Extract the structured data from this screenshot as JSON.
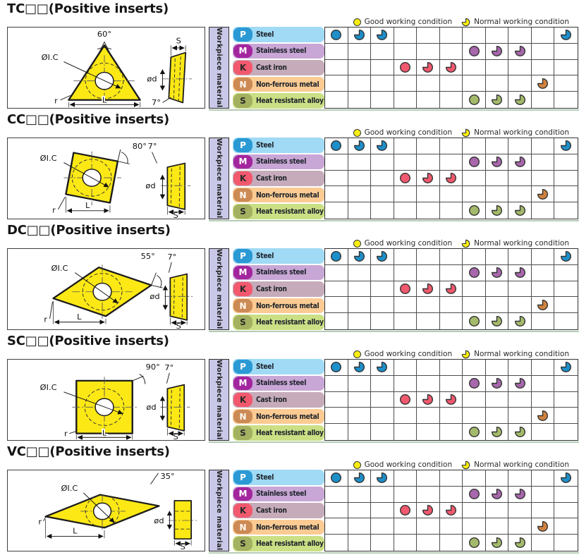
{
  "legend": {
    "good_label": "Good working condition",
    "normal_label": "Normal working condition"
  },
  "workpiece_label": "Workpiece material",
  "columns": 11,
  "materials": [
    {
      "code": "P",
      "name": "Steel",
      "badge_color": "#2b99d4",
      "badge_text_color": "#ffffff",
      "bar_color": "#a0daf5",
      "dot_color": "#1d8fc9",
      "cells": [
        "G",
        "N",
        "N",
        "",
        "",
        "",
        "",
        "",
        "",
        "",
        "N"
      ]
    },
    {
      "code": "M",
      "name": "Stainless steel",
      "badge_color": "#a3269f",
      "badge_text_color": "#ffffff",
      "bar_color": "#c8a6d5",
      "dot_color": "#a767ac",
      "cells": [
        "",
        "",
        "",
        "",
        "",
        "",
        "G",
        "N",
        "N",
        "",
        ""
      ]
    },
    {
      "code": "K",
      "name": "Cast iron",
      "badge_color": "#f2596e",
      "badge_text_color": "#2a2a2a",
      "bar_color": "#c6abba",
      "dot_color": "#f2596e",
      "cells": [
        "",
        "",
        "",
        "G",
        "N",
        "N",
        "",
        "",
        "",
        "",
        ""
      ]
    },
    {
      "code": "N",
      "name": "Non-ferrous metal",
      "badge_color": "#cc8a55",
      "badge_text_color": "#fff8ee",
      "bar_color": "#fbcb93",
      "dot_color": "#d0833f",
      "cells": [
        "",
        "",
        "",
        "",
        "",
        "",
        "",
        "",
        "",
        "N",
        ""
      ]
    },
    {
      "code": "S",
      "name": "Heat resistant alloy",
      "badge_color": "#a3b160",
      "badge_text_color": "#2a2a2a",
      "bar_color": "#cbdf85",
      "dot_color": "#a4ba6b",
      "cells": [
        "",
        "",
        "",
        "",
        "",
        "",
        "G",
        "N",
        "N",
        "",
        ""
      ]
    }
  ],
  "sections": [
    {
      "id": "TC",
      "title": "TC□□(Positive inserts)",
      "diagram": {
        "angle": "60°",
        "inscribed_circle": "ØI.C",
        "corner_radius": "r",
        "length": "L",
        "thickness": "S",
        "hole_diameter": "ød",
        "relief": "7°"
      }
    },
    {
      "id": "CC",
      "title": "CC□□(Positive inserts)",
      "diagram": {
        "angle": "80°",
        "inscribed_circle": "ØI.C",
        "corner_radius": "r",
        "length": "L",
        "thickness": "S",
        "hole_diameter": "ød",
        "relief": "7°"
      }
    },
    {
      "id": "DC",
      "title": "DC□□(Positive inserts)",
      "diagram": {
        "angle": "55°",
        "inscribed_circle": "ØI.C",
        "corner_radius": "r",
        "length": "L",
        "thickness": "S",
        "hole_diameter": "ød",
        "relief": "7°"
      }
    },
    {
      "id": "SC",
      "title": "SC□□(Positive inserts)",
      "diagram": {
        "angle": "90°",
        "inscribed_circle": "ØI.C",
        "corner_radius": "r",
        "length": "L",
        "thickness": "S",
        "hole_diameter": "ød",
        "relief": "7°"
      }
    },
    {
      "id": "VC",
      "title": "VC□□(Positive inserts)",
      "diagram": {
        "angle": "35°",
        "inscribed_circle": "ØI.C",
        "corner_radius": "r",
        "length": "L",
        "thickness": "S",
        "hole_diameter": "ød"
      }
    }
  ],
  "colors": {
    "insert_yellow": "#fce815",
    "workpiece_bg": "#c9c8e8",
    "grid_line": "#4d4d4d",
    "separator_green": "#b5cbb5",
    "legend_yellow": "#f9ee10",
    "page_bg": "#ffffff"
  }
}
